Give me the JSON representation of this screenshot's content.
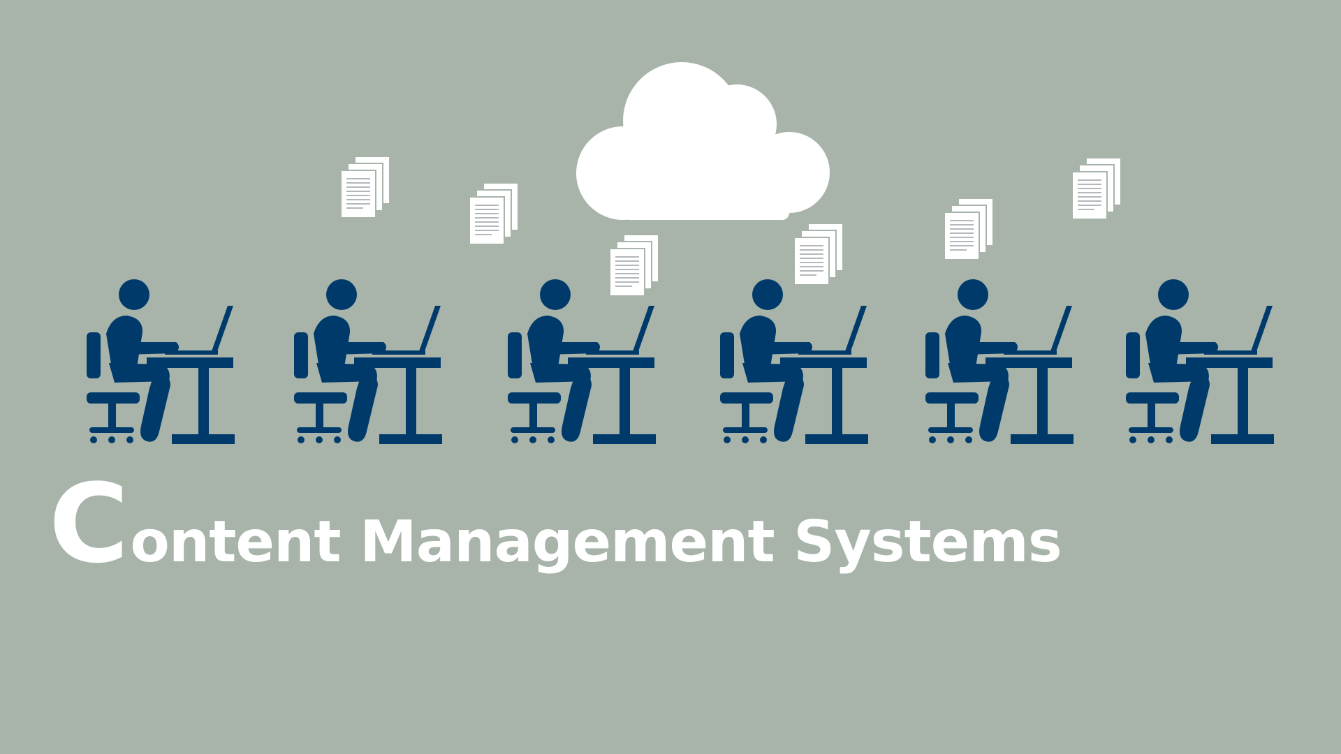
{
  "title": {
    "initial": "C",
    "rest": "ontent Management Systems"
  },
  "colors": {
    "background": "#a8b4a9",
    "figure": "#003a6b",
    "cloud": "#ffffff",
    "document": "#ffffff",
    "document_lines": "#9aa0a6",
    "title_text": "#ffffff"
  },
  "icons": {
    "cloud": "cloud-icon",
    "document_stack": "document-stack-icon",
    "worker": "person-at-laptop-desk-icon"
  },
  "scene": {
    "worker_count": 6,
    "document_stack_count": 6
  }
}
